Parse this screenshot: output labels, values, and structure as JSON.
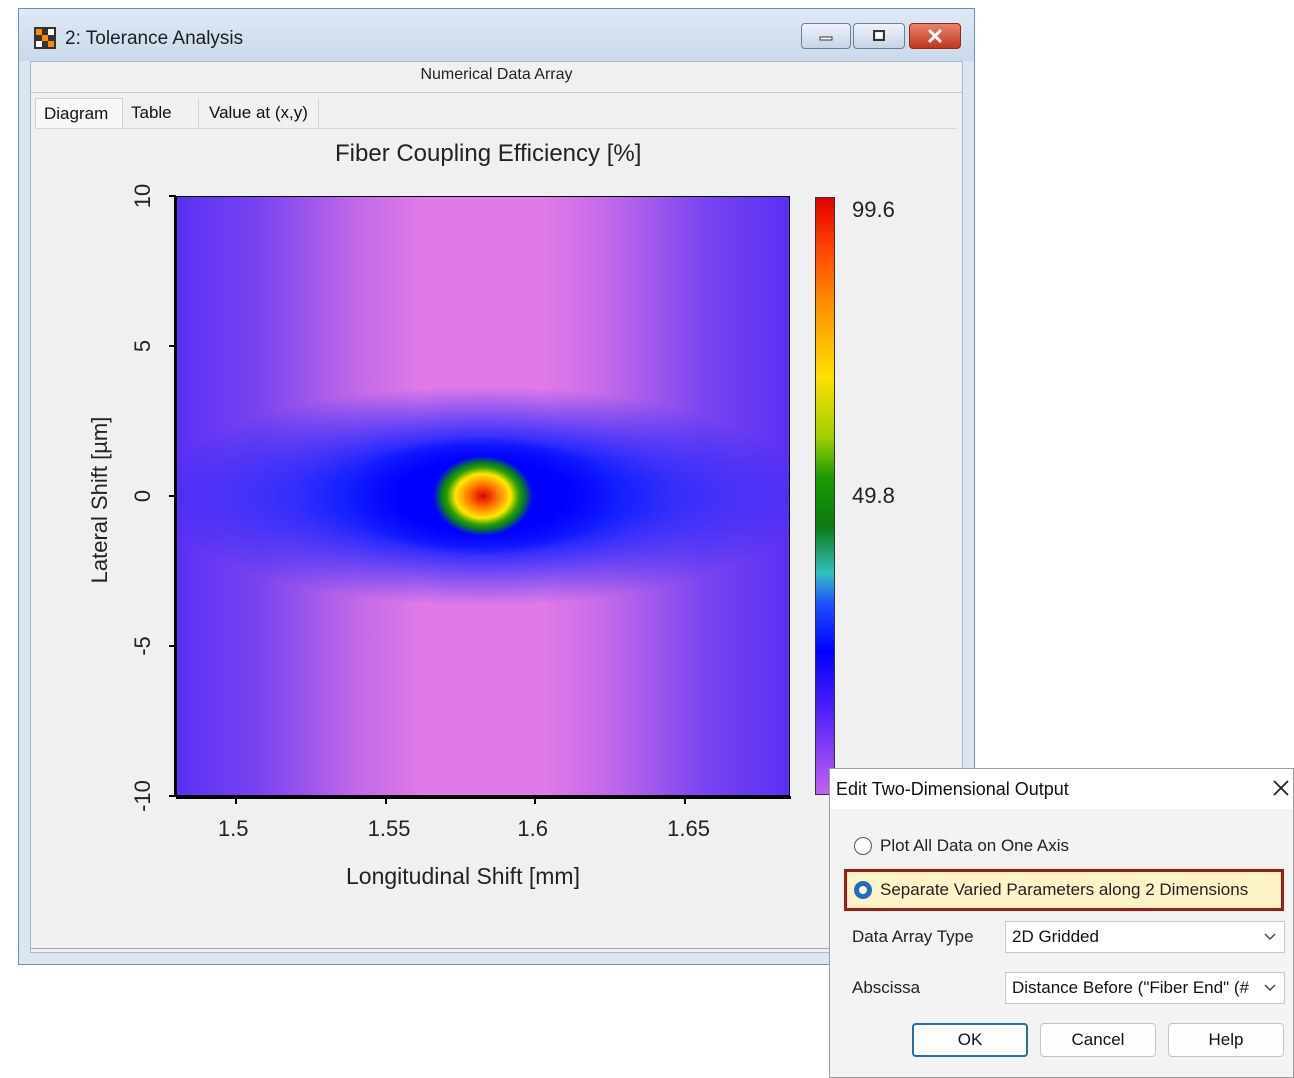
{
  "window": {
    "title": "2: Tolerance Analysis",
    "subheader": "Numerical Data Array",
    "tabs": [
      "Diagram",
      "Table",
      "Value at (x,y)"
    ],
    "active_tab": "Diagram"
  },
  "chart_data": {
    "type": "heatmap",
    "title": "Fiber Coupling Efficiency  [%]",
    "xlabel": "Longitudinal Shift [mm]",
    "ylabel": "Lateral Shift [µm]",
    "x_ticks": [
      "1.5",
      "1.55",
      "1.6",
      "1.65"
    ],
    "y_ticks": [
      "10",
      "5",
      "0",
      "-5",
      "-10"
    ],
    "xlim": [
      1.48,
      1.685
    ],
    "ylim": [
      -10,
      10
    ],
    "colorbar": {
      "max": "99.6",
      "mid": "49.8",
      "min": 0
    },
    "peak": {
      "x": 1.585,
      "y": 0,
      "value": 99.6
    }
  },
  "dialog": {
    "title": "Edit Two-Dimensional Output",
    "radio1": "Plot All Data on One Axis",
    "radio2": "Separate Varied Parameters along 2 Dimensions",
    "selected_radio": 2,
    "data_array_type_label": "Data Array Type",
    "data_array_type_value": "2D Gridded",
    "abscissa_label": "Abscissa",
    "abscissa_value": "Distance Before (\"Fiber End\" (#",
    "ok": "OK",
    "cancel": "Cancel",
    "help": "Help"
  },
  "colors": {
    "highlight_border": "#a11a1a",
    "accent": "#1f6fb6"
  }
}
